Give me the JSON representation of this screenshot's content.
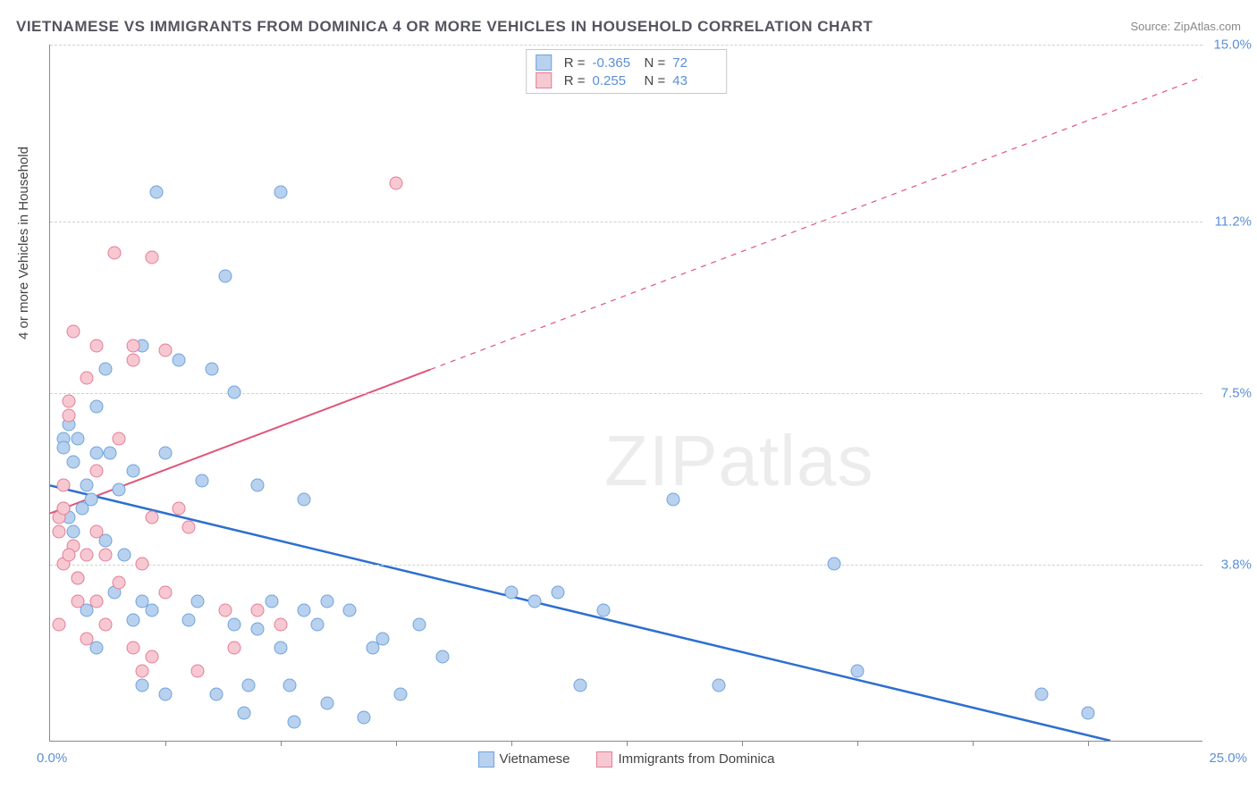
{
  "title": "VIETNAMESE VS IMMIGRANTS FROM DOMINICA 4 OR MORE VEHICLES IN HOUSEHOLD CORRELATION CHART",
  "source": "Source: ZipAtlas.com",
  "watermark": "ZIPatlas",
  "chart": {
    "type": "scatter",
    "background_color": "#ffffff",
    "grid_color": "#d0d0d0",
    "axis_color": "#888888",
    "label_color": "#5b8fd6",
    "title_color": "#555560",
    "x_axis": {
      "min": 0.0,
      "max": 25.0,
      "origin_label": "0.0%",
      "max_label": "25.0%",
      "tick_positions_pct": [
        10,
        20,
        30,
        40,
        50,
        60,
        70,
        80,
        90
      ]
    },
    "y_axis": {
      "label": "4 or more Vehicles in Household",
      "min": 0.0,
      "max": 15.0,
      "gridlines": [
        {
          "value": 3.8,
          "label": "3.8%"
        },
        {
          "value": 7.5,
          "label": "7.5%"
        },
        {
          "value": 11.2,
          "label": "11.2%"
        },
        {
          "value": 15.0,
          "label": "15.0%"
        }
      ]
    },
    "series": [
      {
        "name": "Vietnamese",
        "marker_fill": "#b8d1ee",
        "marker_stroke": "#6fa3dd",
        "line_color": "#2d6fd0",
        "line_width": 2.5,
        "r_value": "-0.365",
        "n_value": "72",
        "regression": {
          "x1_pct": 0,
          "y1_val": 5.5,
          "x2_pct": 92,
          "y2_val": 0
        },
        "points": [
          {
            "x": 0.3,
            "y": 6.5
          },
          {
            "x": 0.3,
            "y": 6.3
          },
          {
            "x": 0.4,
            "y": 6.8
          },
          {
            "x": 0.3,
            "y": 5.0
          },
          {
            "x": 0.4,
            "y": 4.8
          },
          {
            "x": 0.6,
            "y": 6.5
          },
          {
            "x": 0.5,
            "y": 6.0
          },
          {
            "x": 0.8,
            "y": 5.5
          },
          {
            "x": 0.9,
            "y": 5.2
          },
          {
            "x": 0.7,
            "y": 5.0
          },
          {
            "x": 0.5,
            "y": 4.5
          },
          {
            "x": 1.0,
            "y": 6.2
          },
          {
            "x": 1.2,
            "y": 8.0
          },
          {
            "x": 1.3,
            "y": 6.2
          },
          {
            "x": 1.5,
            "y": 5.4
          },
          {
            "x": 1.6,
            "y": 4.0
          },
          {
            "x": 1.8,
            "y": 5.8
          },
          {
            "x": 2.0,
            "y": 8.5
          },
          {
            "x": 2.0,
            "y": 1.2
          },
          {
            "x": 2.0,
            "y": 3.0
          },
          {
            "x": 2.2,
            "y": 2.8
          },
          {
            "x": 2.3,
            "y": 11.8
          },
          {
            "x": 2.5,
            "y": 6.2
          },
          {
            "x": 2.5,
            "y": 1.0
          },
          {
            "x": 2.8,
            "y": 8.2
          },
          {
            "x": 3.0,
            "y": 2.6
          },
          {
            "x": 3.2,
            "y": 3.0
          },
          {
            "x": 3.3,
            "y": 5.6
          },
          {
            "x": 3.5,
            "y": 8.0
          },
          {
            "x": 3.8,
            "y": 10.0
          },
          {
            "x": 4.0,
            "y": 2.5
          },
          {
            "x": 4.0,
            "y": 7.5
          },
          {
            "x": 4.2,
            "y": 0.6
          },
          {
            "x": 4.5,
            "y": 2.4
          },
          {
            "x": 4.5,
            "y": 5.5
          },
          {
            "x": 4.8,
            "y": 3.0
          },
          {
            "x": 5.0,
            "y": 11.8
          },
          {
            "x": 5.0,
            "y": 2.0
          },
          {
            "x": 5.2,
            "y": 1.2
          },
          {
            "x": 5.5,
            "y": 5.2
          },
          {
            "x": 5.5,
            "y": 2.8
          },
          {
            "x": 5.8,
            "y": 2.5
          },
          {
            "x": 6.0,
            "y": 3.0
          },
          {
            "x": 6.0,
            "y": 0.8
          },
          {
            "x": 6.5,
            "y": 2.8
          },
          {
            "x": 6.8,
            "y": 0.5
          },
          {
            "x": 7.0,
            "y": 2.0
          },
          {
            "x": 7.2,
            "y": 2.2
          },
          {
            "x": 8.0,
            "y": 2.5
          },
          {
            "x": 8.5,
            "y": 1.8
          },
          {
            "x": 10.0,
            "y": 3.2
          },
          {
            "x": 10.5,
            "y": 3.0
          },
          {
            "x": 11.0,
            "y": 3.2
          },
          {
            "x": 11.5,
            "y": 1.2
          },
          {
            "x": 12.0,
            "y": 2.8
          },
          {
            "x": 13.5,
            "y": 5.2
          },
          {
            "x": 14.5,
            "y": 1.2
          },
          {
            "x": 17.0,
            "y": 3.8
          },
          {
            "x": 17.5,
            "y": 1.5
          },
          {
            "x": 21.5,
            "y": 1.0
          },
          {
            "x": 22.5,
            "y": 0.6
          },
          {
            "x": 1.0,
            "y": 7.2
          },
          {
            "x": 1.2,
            "y": 4.3
          },
          {
            "x": 0.6,
            "y": 3.5
          },
          {
            "x": 0.8,
            "y": 2.8
          },
          {
            "x": 1.0,
            "y": 2.0
          },
          {
            "x": 1.4,
            "y": 3.2
          },
          {
            "x": 1.8,
            "y": 2.6
          },
          {
            "x": 3.6,
            "y": 1.0
          },
          {
            "x": 4.3,
            "y": 1.2
          },
          {
            "x": 5.3,
            "y": 0.4
          },
          {
            "x": 7.6,
            "y": 1.0
          }
        ]
      },
      {
        "name": "Immigrants from Dominica",
        "marker_fill": "#f6c9d2",
        "marker_stroke": "#e87b95",
        "line_color": "#e05577",
        "line_width": 2,
        "r_value": "0.255",
        "n_value": "43",
        "regression": {
          "x1_pct": 0,
          "y1_val": 4.9,
          "x2_pct": 33,
          "y2_val": 8.0,
          "dash_to_x_pct": 100,
          "dash_to_y_val": 14.3
        },
        "points": [
          {
            "x": 0.2,
            "y": 4.8
          },
          {
            "x": 0.2,
            "y": 4.5
          },
          {
            "x": 0.3,
            "y": 5.5
          },
          {
            "x": 0.3,
            "y": 5.0
          },
          {
            "x": 0.4,
            "y": 7.3
          },
          {
            "x": 0.4,
            "y": 7.0
          },
          {
            "x": 0.5,
            "y": 8.8
          },
          {
            "x": 0.5,
            "y": 4.2
          },
          {
            "x": 0.6,
            "y": 3.5
          },
          {
            "x": 0.6,
            "y": 3.0
          },
          {
            "x": 0.8,
            "y": 7.8
          },
          {
            "x": 0.8,
            "y": 4.0
          },
          {
            "x": 0.8,
            "y": 2.2
          },
          {
            "x": 1.0,
            "y": 8.5
          },
          {
            "x": 1.0,
            "y": 5.8
          },
          {
            "x": 1.0,
            "y": 4.5
          },
          {
            "x": 1.0,
            "y": 3.0
          },
          {
            "x": 1.2,
            "y": 4.0
          },
          {
            "x": 1.2,
            "y": 2.5
          },
          {
            "x": 1.4,
            "y": 10.5
          },
          {
            "x": 1.5,
            "y": 6.5
          },
          {
            "x": 1.5,
            "y": 3.4
          },
          {
            "x": 1.8,
            "y": 8.5
          },
          {
            "x": 1.8,
            "y": 8.2
          },
          {
            "x": 1.8,
            "y": 2.0
          },
          {
            "x": 2.0,
            "y": 3.8
          },
          {
            "x": 2.0,
            "y": 1.5
          },
          {
            "x": 2.2,
            "y": 10.4
          },
          {
            "x": 2.2,
            "y": 4.8
          },
          {
            "x": 2.2,
            "y": 1.8
          },
          {
            "x": 2.5,
            "y": 8.4
          },
          {
            "x": 2.5,
            "y": 3.2
          },
          {
            "x": 2.8,
            "y": 5.0
          },
          {
            "x": 3.0,
            "y": 4.6
          },
          {
            "x": 3.2,
            "y": 1.5
          },
          {
            "x": 3.8,
            "y": 2.8
          },
          {
            "x": 4.0,
            "y": 2.0
          },
          {
            "x": 4.5,
            "y": 2.8
          },
          {
            "x": 5.0,
            "y": 2.5
          },
          {
            "x": 7.5,
            "y": 12.0
          },
          {
            "x": 0.2,
            "y": 2.5
          },
          {
            "x": 0.3,
            "y": 3.8
          },
          {
            "x": 0.4,
            "y": 4.0
          }
        ]
      }
    ],
    "legend_bottom": [
      {
        "label": "Vietnamese",
        "fill": "#b8d1ee",
        "stroke": "#6fa3dd"
      },
      {
        "label": "Immigrants from Dominica",
        "fill": "#f6c9d2",
        "stroke": "#e87b95"
      }
    ]
  }
}
